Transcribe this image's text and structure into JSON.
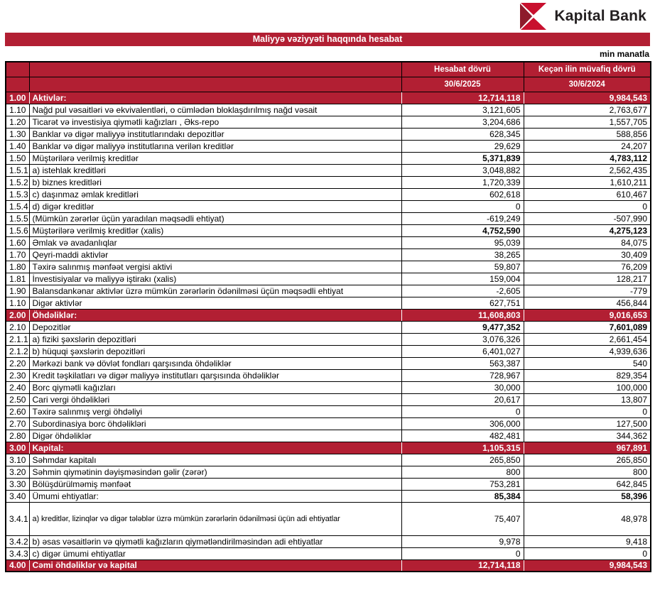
{
  "brand": {
    "name": "Kapital Bank"
  },
  "banner": {
    "title": "Maliyyə vəziyyəti haqqında hesabat"
  },
  "unit_note": "min manatla",
  "colors": {
    "brand_red": "#B21F33",
    "logo_dark_red": "#8E1B2C",
    "logo_bright_red": "#C8102E"
  },
  "table": {
    "col_headers": {
      "period_current": {
        "label": "Hesabat dövrü",
        "date": "30/6/2025"
      },
      "period_prior": {
        "label": "Keçən ilin müvafiq dövrü",
        "date": "30/6/2024"
      }
    },
    "rows": [
      {
        "num": "1.00",
        "label": "Aktivlər:",
        "v2025": "12,714,118",
        "v2024": "9,984,543",
        "style": "section"
      },
      {
        "num": "1.10",
        "label": "Nağd pul vəsaitləri və  ekvivalentləri, o cümlədən bloklaşdırılmış nağd vəsait",
        "v2025": "3,121,605",
        "v2024": "2,763,677"
      },
      {
        "num": "1.20",
        "label": "Ticarət və investisiya qiymətli kağızları , Əks-repo",
        "v2025": "3,204,686",
        "v2024": "1,557,705"
      },
      {
        "num": "1.30",
        "label": "Banklar və digər maliyyə institutlarındakı depozitlər",
        "v2025": "628,345",
        "v2024": "588,856"
      },
      {
        "num": "1.40",
        "label": "Banklar və digər maliyyə institutlarına verilən kreditlər",
        "v2025": "29,629",
        "v2024": "24,207"
      },
      {
        "num": "1.50",
        "label": "Müştərilərə verilmiş kreditlər",
        "v2025": "5,371,839",
        "v2024": "4,783,112",
        "style": "subtotal"
      },
      {
        "num": "1.5.1",
        "label": "a) istehlak kreditləri",
        "v2025": "3,048,882",
        "v2024": "2,562,435"
      },
      {
        "num": "1.5.2",
        "label": "b) biznes kreditləri",
        "v2025": "1,720,339",
        "v2024": "1,610,211"
      },
      {
        "num": "1.5.3",
        "label": "c) daşınmaz əmlak kreditləri",
        "v2025": "602,618",
        "v2024": "610,467"
      },
      {
        "num": "1.5.4",
        "label": "d) digər kreditlər",
        "v2025": "0",
        "v2024": "0"
      },
      {
        "num": "1.5.5",
        "label": "(Mümkün zərərlər üçün yaradılan məqsədli ehtiyat)",
        "v2025": "-619,249",
        "v2024": "-507,990"
      },
      {
        "num": "1.5.6",
        "label": "Müştərilərə verilmiş kreditlər (xalis)",
        "v2025": "4,752,590",
        "v2024": "4,275,123",
        "style": "subtotal"
      },
      {
        "num": "1.60",
        "label": "Əmlak və avadanlıqlar",
        "v2025": "95,039",
        "v2024": "84,075"
      },
      {
        "num": "1.70",
        "label": "Qeyri-maddi aktivlər",
        "v2025": "38,265",
        "v2024": "30,409"
      },
      {
        "num": "1.80",
        "label": "Təxirə salınmış mənfəət vergisi aktivi",
        "v2025": "59,807",
        "v2024": "76,209"
      },
      {
        "num": "1.81",
        "label": "İnvestisiyalar və maliyyə iştirakı (xalis)",
        "v2025": "159,004",
        "v2024": "128,217"
      },
      {
        "num": "1.90",
        "label": "Balansdankənar aktivlər üzrə mümkün zərərlərin ödənilməsi üçün məqsədli ehtiyat",
        "v2025": "-2,605",
        "v2024": "-779"
      },
      {
        "num": "1.10",
        "label": "Digər aktivlər",
        "v2025": "627,751",
        "v2024": "456,844"
      },
      {
        "num": "2.00",
        "label": "Öhdəliklər:",
        "v2025": "11,608,803",
        "v2024": "9,016,653",
        "style": "section"
      },
      {
        "num": "2.10",
        "label": "Depozitlər",
        "v2025": "9,477,352",
        "v2024": "7,601,089",
        "style": "subtotal"
      },
      {
        "num": "2.1.1",
        "label": "a) fiziki şəxslərin depozitləri",
        "v2025": "3,076,326",
        "v2024": "2,661,454"
      },
      {
        "num": "2.1.2",
        "label": "b) hüquqi şəxslərin depozitləri",
        "v2025": "6,401,027",
        "v2024": "4,939,636"
      },
      {
        "num": "2.20",
        "label": "Mərkəzi bank və dövlət fondları qarşısında öhdəliklər",
        "v2025": "563,387",
        "v2024": "540"
      },
      {
        "num": "2.30",
        "label": "Kredit təşkilatları və digər maliyyə institutları qarşısında öhdəliklər",
        "v2025": "728,967",
        "v2024": "829,354"
      },
      {
        "num": "2.40",
        "label": "Borc qiymətli kağızları",
        "v2025": "30,000",
        "v2024": "100,000"
      },
      {
        "num": "2.50",
        "label": "Cari vergi öhdəlikləri",
        "v2025": "20,617",
        "v2024": "13,807"
      },
      {
        "num": "2.60",
        "label": "Təxirə salınmış vergi öhdəliyi",
        "v2025": "0",
        "v2024": "0"
      },
      {
        "num": "2.70",
        "label": "Subordinasiya borc öhdəlikləri",
        "v2025": "306,000",
        "v2024": "127,500"
      },
      {
        "num": "2.80",
        "label": "Digər öhdəliklər",
        "v2025": "482,481",
        "v2024": "344,362"
      },
      {
        "num": "3.00",
        "label": "Kapital:",
        "v2025": "1,105,315",
        "v2024": "967,891",
        "style": "section"
      },
      {
        "num": "3.10",
        "label": "Səhmdar kapitalı",
        "v2025": "265,850",
        "v2024": "265,850"
      },
      {
        "num": "3.20",
        "label": "Səhmin qiymətinin dəyişməsindən gəlir (zərər)",
        "v2025": "800",
        "v2024": "800"
      },
      {
        "num": "3.30",
        "label": "Bölüşdürülməmiş mənfəət",
        "v2025": "753,281",
        "v2024": "642,845"
      },
      {
        "num": "3.40",
        "label": "Ümumi ehtiyatlar:",
        "v2025": "85,384",
        "v2024": "58,396",
        "style": "subtotal"
      },
      {
        "num": "3.4.1",
        "label": "a) kreditlər, lizinqlər və digər tələblər üzrə mümkün zərərlərin ödənilməsi üçün adi ehtiyatlar",
        "v2025": "75,407",
        "v2024": "48,978",
        "style": "tall"
      },
      {
        "num": "3.4.2",
        "label": "b) əsas vəsaitlərin və qiymətli kağızların qiymətləndirilməsindən adi ehtiyatlar",
        "v2025": "9,978",
        "v2024": "9,418"
      },
      {
        "num": "3.4.3",
        "label": "c) digər ümumi ehtiyatlar",
        "v2025": "0",
        "v2024": "0"
      },
      {
        "num": "4.00",
        "label": "Cəmi öhdəliklər və kapital",
        "v2025": "12,714,118",
        "v2024": "9,984,543",
        "style": "section"
      }
    ]
  }
}
